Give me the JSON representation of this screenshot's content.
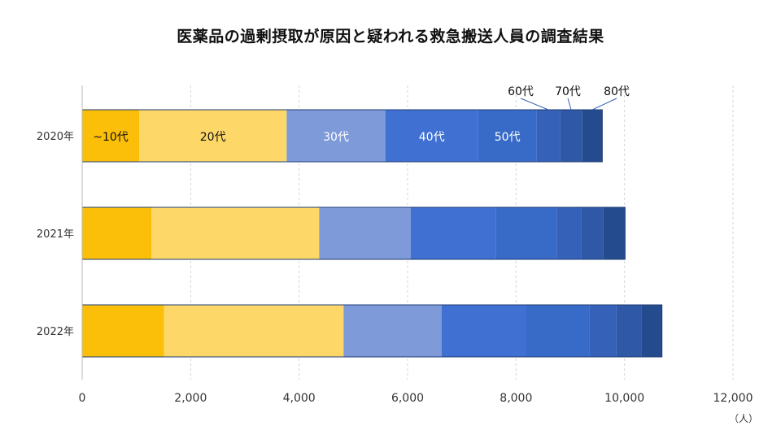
{
  "chart_data": {
    "type": "bar",
    "orientation": "horizontal",
    "stacked": true,
    "title": "医薬品の過剰摂取が原因と疑われる救急搬送人員の調査結果",
    "categories": [
      "2020年",
      "2021年",
      "2022年"
    ],
    "series": [
      {
        "name": "~10代",
        "color": "#FBBF09",
        "label_color": "#111111",
        "values": [
          1050,
          1280,
          1510
        ]
      },
      {
        "name": "20代",
        "color": "#FDD868",
        "label_color": "#111111",
        "values": [
          2720,
          3090,
          3310
        ]
      },
      {
        "name": "30代",
        "color": "#7E9AD9",
        "label_color": "#ffffff",
        "values": [
          1820,
          1690,
          1810
        ]
      },
      {
        "name": "40代",
        "color": "#3F70D2",
        "label_color": "#ffffff",
        "values": [
          1710,
          1570,
          1560
        ]
      },
      {
        "name": "50代",
        "color": "#386AC8",
        "label_color": "#ffffff",
        "values": [
          1080,
          1120,
          1160
        ]
      },
      {
        "name": "60代",
        "color": "#3562B8",
        "label_color": "#111111",
        "values": [
          430,
          450,
          500
        ]
      },
      {
        "name": "70代",
        "color": "#2F58A6",
        "label_color": "#111111",
        "values": [
          410,
          410,
          460
        ]
      },
      {
        "name": "80代",
        "color": "#254B8F",
        "label_color": "#111111",
        "values": [
          370,
          400,
          380
        ]
      }
    ],
    "xlim": [
      0,
      12000
    ],
    "xticks": [
      0,
      2000,
      4000,
      6000,
      8000,
      10000,
      12000
    ],
    "xtick_labels": [
      "0",
      "2,000",
      "4,000",
      "6,000",
      "8,000",
      "10,000",
      "12,000"
    ],
    "unit": "（人）",
    "grid": "vertical dashed",
    "legend": "inline labels on 2020年 bar"
  }
}
